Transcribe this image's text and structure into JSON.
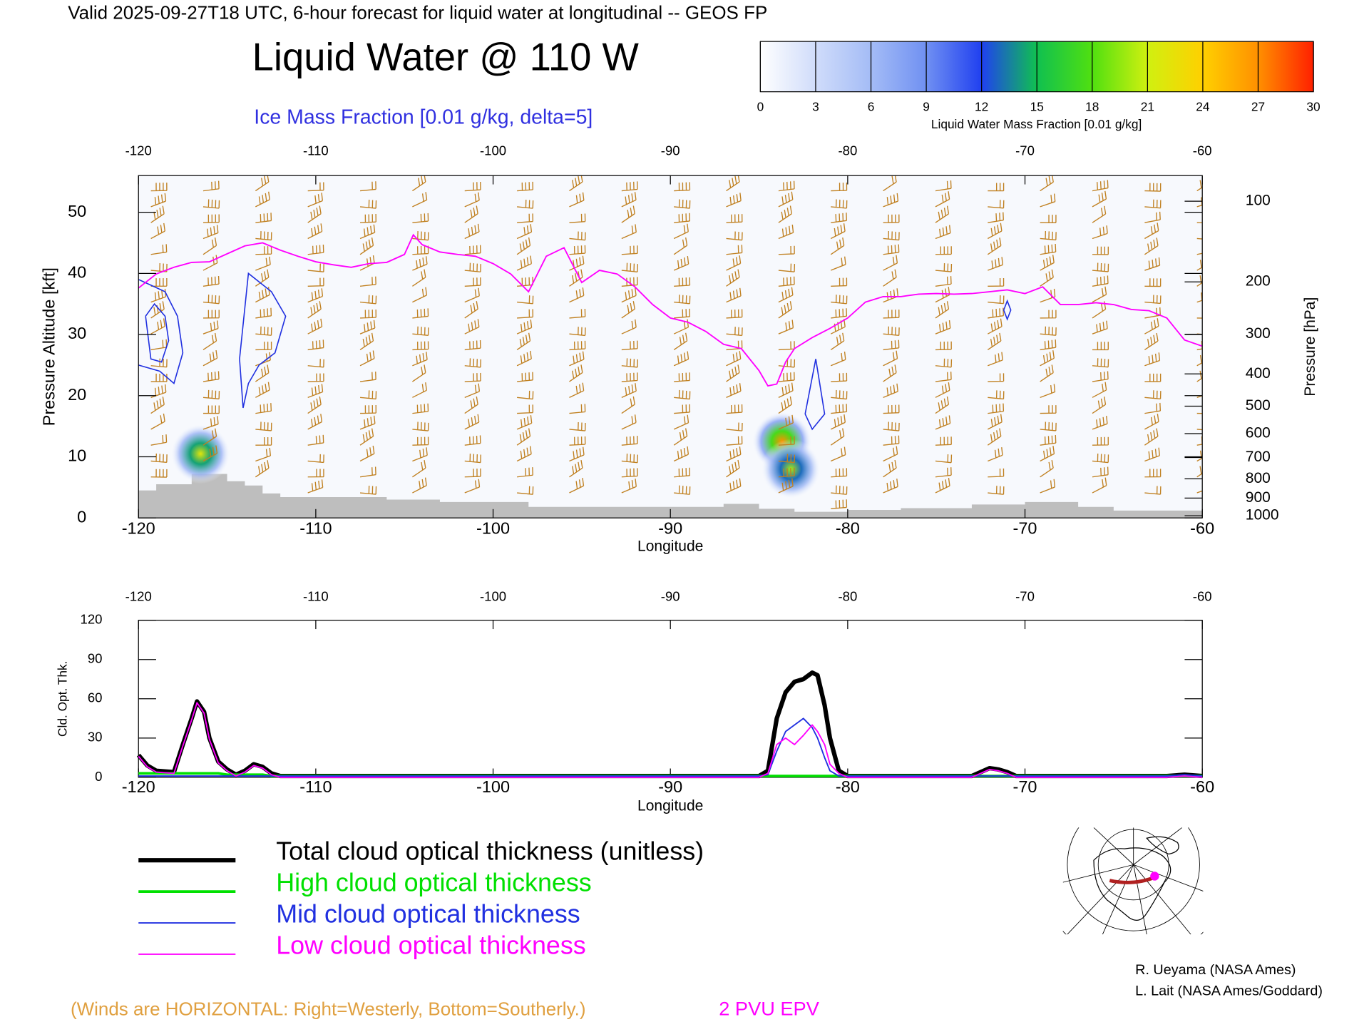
{
  "chart_data": [
    {
      "type": "cross-section",
      "title": "Valid 2025-09-27T18 UTC, 6-hour forecast for liquid water at longitudinal -- GEOS FP",
      "subtitle": "Liquid Water @ 110 W",
      "contour_label": "Ice Mass Fraction [0.01 g/kg, delta=5]",
      "xlabel": "Longitude",
      "ylabel": "Pressure Altitude [kft]",
      "y2label": "Pressure [hPa]",
      "xlim": [
        -120,
        -60
      ],
      "xticks": [
        -120,
        -110,
        -100,
        -90,
        -80,
        -70,
        -60
      ],
      "ylim": [
        0,
        56
      ],
      "yticks": [
        0,
        10,
        20,
        30,
        40,
        50
      ],
      "y2scale": "pressure",
      "y2ticks": [
        100,
        200,
        300,
        400,
        500,
        600,
        700,
        800,
        900,
        1000
      ],
      "colorbar": {
        "label": "Liquid Water Mass Fraction [0.01 g/kg]",
        "lim": [
          0,
          30
        ],
        "ticks": [
          0,
          3,
          6,
          9,
          12,
          15,
          18,
          21,
          24,
          27,
          30
        ],
        "colors": [
          "#ffffff",
          "#d0dcfa",
          "#a4bcf6",
          "#7090f2",
          "#2040f0",
          "#10c050",
          "#50e010",
          "#d0f010",
          "#ffd000",
          "#ff9000",
          "#ff2000"
        ]
      },
      "liquid_water": {
        "x": [
          -116.5,
          -83.7,
          -83.2
        ],
        "y": [
          10.5,
          12.5,
          8
        ],
        "values": [
          22,
          27,
          20
        ]
      },
      "ice_contours": [
        {
          "color": "#2030e0",
          "x": [
            -120,
            -118.5,
            -117.8,
            -117.5,
            -118,
            -118.8,
            -120
          ],
          "y": [
            39,
            37,
            33,
            27,
            22,
            24,
            25
          ]
        },
        {
          "color": "#2030e0",
          "x": [
            -119.6,
            -119.1,
            -118.5,
            -118.3,
            -118.7,
            -119.3,
            -119.6
          ],
          "y": [
            33,
            35,
            33,
            29,
            25.5,
            26,
            33
          ]
        },
        {
          "color": "#2030e0",
          "x": [
            -114.3,
            -113.8,
            -112.5,
            -111.7,
            -112.3,
            -113.2,
            -113.8,
            -114.1,
            -114.3
          ],
          "y": [
            26,
            40,
            37,
            33,
            27,
            25,
            22,
            18,
            26
          ]
        },
        {
          "color": "#2030e0",
          "x": [
            -82.4,
            -81.8,
            -81.3,
            -82.0,
            -82.4
          ],
          "y": [
            17,
            26,
            17,
            14.5,
            17
          ]
        },
        {
          "color": "#2030e0",
          "x": [
            -71.2,
            -71,
            -70.8,
            -71,
            -71.2
          ],
          "y": [
            34,
            35.5,
            34,
            32.5,
            34
          ]
        }
      ],
      "series": [
        {
          "name": "2 PVU EPV",
          "color": "#ff00ff",
          "x": [
            -120,
            -119,
            -118,
            -117,
            -116,
            -115,
            -114,
            -113,
            -112,
            -111,
            -110,
            -109,
            -108,
            -107,
            -106,
            -105,
            -104.5,
            -104,
            -103,
            -102,
            -101,
            -100,
            -99,
            -98,
            -97,
            -96,
            -95,
            -94,
            -93,
            -92,
            -91,
            -90,
            -89,
            -88,
            -87,
            -86,
            -85,
            -84.5,
            -84,
            -83.5,
            -83,
            -82,
            -81,
            -80,
            -79,
            -78,
            -77,
            -76,
            -75,
            -74,
            -73,
            -72,
            -71,
            -70,
            -69,
            -68,
            -67,
            -66,
            -65,
            -64,
            -63,
            -62,
            -61,
            -60
          ],
          "values": [
            37.6,
            39.9,
            41,
            41.8,
            41.9,
            43.2,
            44.5,
            45,
            43.8,
            42.8,
            41.9,
            41.4,
            41,
            41.6,
            41.8,
            43.1,
            46.3,
            44.7,
            43.5,
            43.1,
            42.8,
            41.6,
            39.9,
            37,
            42.8,
            44.2,
            38.5,
            40.5,
            39.9,
            37.8,
            34.9,
            32.7,
            32,
            30.5,
            28.4,
            27.7,
            24.1,
            21.6,
            21.9,
            25.5,
            27.7,
            29.5,
            31,
            32.7,
            35.3,
            36.2,
            36.2,
            36.6,
            36.7,
            36.6,
            36.7,
            37,
            37.3,
            36.7,
            37.8,
            34.9,
            34.9,
            35.2,
            34.9,
            34.1,
            33.9,
            32.7,
            29.1,
            28.1
          ]
        }
      ],
      "terrain": {
        "color": "#bebebe",
        "x": [
          -120,
          -119,
          -117,
          -115,
          -114,
          -113,
          -112,
          -108,
          -106,
          -103,
          -98,
          -90,
          -87,
          -85,
          -83,
          -80,
          -77,
          -73,
          -70,
          -67,
          -65,
          -60
        ],
        "values": [
          4.5,
          5.5,
          7.2,
          6,
          5.3,
          4,
          3.4,
          3.4,
          3,
          2.6,
          1.8,
          1.8,
          2.3,
          1.5,
          1,
          1.3,
          1.6,
          2.2,
          2.6,
          1.8,
          1.2,
          1.2
        ]
      },
      "wind_note": "(Winds are HORIZONTAL: Right=Westerly, Bottom=Southerly.)",
      "wind_color": "#c08020"
    },
    {
      "type": "line",
      "xlabel": "Longitude",
      "ylabel": "Cld. Opt. Thk.",
      "xlim": [
        -120,
        -60
      ],
      "xticks": [
        -120,
        -110,
        -100,
        -90,
        -80,
        -70,
        -60
      ],
      "ylim": [
        0,
        120
      ],
      "yticks": [
        0,
        30,
        60,
        90,
        120
      ],
      "x": [
        -120,
        -119.5,
        -119,
        -118,
        -117.5,
        -117,
        -116.7,
        -116.3,
        -116,
        -115.5,
        -115,
        -114.5,
        -114,
        -113.5,
        -113,
        -112.5,
        -112,
        -100,
        -90,
        -85,
        -84.5,
        -84,
        -83.5,
        -83,
        -82.5,
        -82,
        -81.7,
        -81.3,
        -81,
        -80.5,
        -80,
        -73,
        -72.5,
        -72,
        -71.5,
        -71,
        -70.5,
        -62,
        -61,
        -60
      ],
      "series": [
        {
          "name": "Total cloud optical thickness (unitless)",
          "color": "#000000",
          "width": 5,
          "values": [
            17,
            9,
            5,
            4,
            25,
            45,
            58,
            50,
            30,
            12,
            6,
            2,
            5,
            10,
            8,
            3,
            1,
            1,
            1,
            1,
            5,
            45,
            65,
            73,
            75,
            80,
            78,
            55,
            30,
            5,
            1,
            1,
            4,
            7,
            6,
            4,
            1,
            1,
            2,
            1
          ]
        },
        {
          "name": "High cloud optical thickness",
          "color": "#00e000",
          "width": 3,
          "values": [
            3,
            3,
            3,
            3,
            3,
            3,
            3,
            3,
            3,
            3,
            2,
            2,
            2,
            2,
            2,
            1,
            1,
            1,
            1,
            1,
            1,
            1,
            1,
            1,
            1,
            1,
            1,
            1,
            1,
            1,
            1,
            1,
            1,
            1,
            1,
            1,
            1,
            1,
            1,
            1
          ]
        },
        {
          "name": "Mid cloud optical thickness",
          "color": "#2030e0",
          "width": 1.5,
          "values": [
            1,
            1,
            1,
            1,
            1,
            1,
            1,
            1,
            1,
            1,
            1,
            1,
            1,
            1,
            1,
            1,
            1,
            1,
            1,
            1,
            2,
            20,
            35,
            40,
            45,
            38,
            30,
            15,
            5,
            1,
            1,
            1,
            1,
            1,
            1,
            1,
            1,
            1,
            2,
            1
          ]
        },
        {
          "name": "Low cloud optical thickness",
          "color": "#ff00ff",
          "width": 1.5,
          "values": [
            16,
            8,
            4,
            3,
            24,
            44,
            57,
            49,
            29,
            11,
            5,
            1,
            4,
            9,
            7,
            2,
            0,
            0,
            0,
            0,
            3,
            25,
            30,
            25,
            32,
            40,
            35,
            25,
            10,
            3,
            0,
            0,
            3,
            6,
            5,
            3,
            0,
            0,
            1,
            0
          ]
        }
      ]
    }
  ],
  "credits": [
    "R. Ueyama (NASA Ames)",
    "L. Lait (NASA Ames/Goddard)"
  ]
}
